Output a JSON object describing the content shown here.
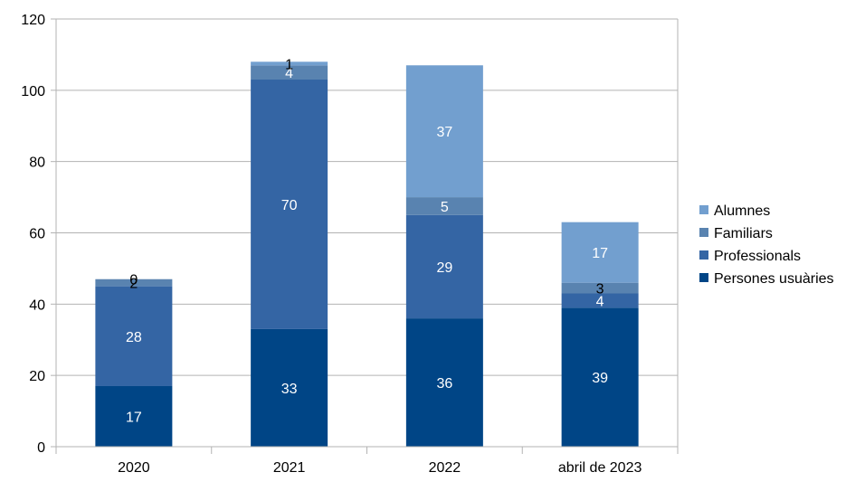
{
  "chart_data": {
    "type": "bar",
    "stacked": true,
    "categories": [
      "2020",
      "2021",
      "2022",
      "abril de 2023"
    ],
    "series": [
      {
        "name": "Persones usuàries",
        "values": [
          17,
          33,
          36,
          39
        ],
        "color": "#004586",
        "label_color": "#ffffff"
      },
      {
        "name": "Professionals",
        "values": [
          28,
          70,
          29,
          4
        ],
        "color": "#3465a4",
        "label_color": "#ffffff"
      },
      {
        "name": "Familiars",
        "values": [
          2,
          4,
          5,
          3
        ],
        "color": "#5983b0",
        "label_color": "#ffffff"
      },
      {
        "name": "Alumnes",
        "values": [
          0,
          1,
          37,
          17
        ],
        "color": "#729fcf",
        "label_color": "#ffffff"
      }
    ],
    "ylim": [
      0,
      120
    ],
    "yticks": [
      "0",
      "20",
      "40",
      "60",
      "80",
      "100",
      "120"
    ],
    "grid": true,
    "legend": "right",
    "title": "",
    "xlabel": "",
    "ylabel": ""
  }
}
